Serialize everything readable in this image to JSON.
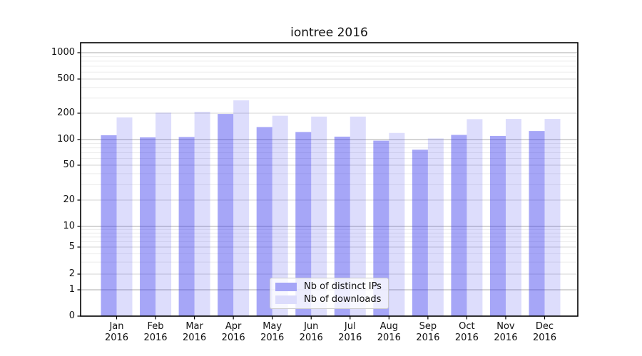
{
  "title": "iontree 2016",
  "chart_data": {
    "type": "bar",
    "title": "iontree 2016",
    "categories": [
      "Jan 2016",
      "Feb 2016",
      "Mar 2016",
      "Apr 2016",
      "May 2016",
      "Jun 2016",
      "Jul 2016",
      "Aug 2016",
      "Sep 2016",
      "Oct 2016",
      "Nov 2016",
      "Dec 2016"
    ],
    "series": [
      {
        "name": "Nb of distinct IPs",
        "color": "rgba(52,52,236,0.44)",
        "legend_color": "#a6a6f7",
        "values": [
          112,
          106,
          107,
          196,
          139,
          122,
          108,
          97,
          76,
          113,
          110,
          125
        ]
      },
      {
        "name": "Nb of downloads",
        "color": "rgba(52,52,236,0.17)",
        "legend_color": "#dcdcfc",
        "values": [
          179,
          203,
          208,
          283,
          187,
          183,
          183,
          119,
          103,
          171,
          172,
          172
        ]
      }
    ],
    "y_axis": {
      "scale": "log",
      "ticks": [
        0,
        1,
        2,
        5,
        10,
        20,
        50,
        100,
        200,
        500,
        1000
      ],
      "ylim": [
        0,
        1300
      ]
    },
    "x_axis": {
      "tick_format": "two-line month over year"
    },
    "grid": true,
    "legend_position": "lower-center"
  }
}
